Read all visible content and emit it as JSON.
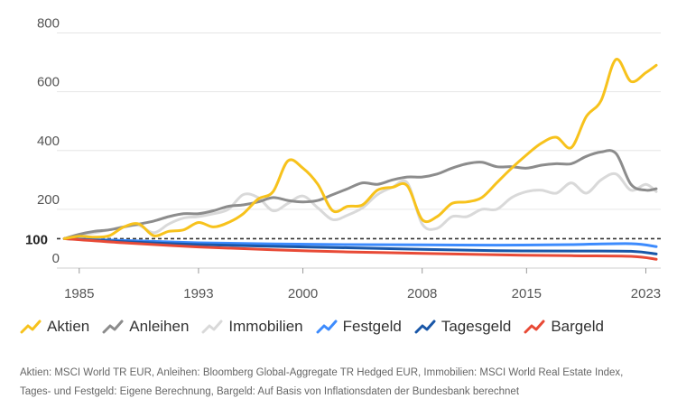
{
  "chart_data": {
    "type": "line",
    "xlabel": "",
    "ylabel": "",
    "xlim": [
      1983.5,
      2024
    ],
    "ylim": [
      0,
      820
    ],
    "y_ticks": [
      0,
      200,
      400,
      600,
      800
    ],
    "y_highlight_tick": 100,
    "x_ticks": [
      1985,
      1993,
      2000,
      2008,
      2015,
      2023
    ],
    "reference_line": {
      "y": 100,
      "style": "dashed",
      "color": "#333333"
    },
    "series": [
      {
        "name": "Aktien",
        "color": "#F7C21C",
        "x": [
          1984,
          1985,
          1986,
          1987,
          1988,
          1989,
          1990,
          1991,
          1992,
          1993,
          1994,
          1995,
          1996,
          1997,
          1998,
          1999,
          2000,
          2001,
          2002,
          2003,
          2004,
          2005,
          2006,
          2007,
          2008,
          2009,
          2010,
          2011,
          2012,
          2013,
          2014,
          2015,
          2016,
          2017,
          2018,
          2019,
          2020,
          2021,
          2022,
          2023,
          2023.7
        ],
        "y": [
          100,
          108,
          105,
          110,
          140,
          150,
          110,
          125,
          130,
          155,
          140,
          155,
          185,
          235,
          260,
          365,
          340,
          285,
          195,
          210,
          215,
          265,
          275,
          280,
          165,
          175,
          220,
          225,
          240,
          290,
          340,
          385,
          425,
          445,
          410,
          515,
          570,
          710,
          635,
          665,
          690
        ]
      },
      {
        "name": "Anleihen",
        "color": "#8C8C8C",
        "x": [
          1984,
          1985,
          1986,
          1987,
          1988,
          1989,
          1990,
          1991,
          1992,
          1993,
          1994,
          1995,
          1996,
          1997,
          1998,
          1999,
          2000,
          2001,
          2002,
          2003,
          2004,
          2005,
          2006,
          2007,
          2008,
          2009,
          2010,
          2011,
          2012,
          2013,
          2014,
          2015,
          2016,
          2017,
          2018,
          2019,
          2020,
          2021,
          2022,
          2023,
          2023.7
        ],
        "y": [
          100,
          115,
          125,
          130,
          140,
          150,
          160,
          175,
          185,
          185,
          195,
          210,
          215,
          225,
          240,
          230,
          225,
          230,
          250,
          270,
          290,
          285,
          300,
          310,
          310,
          320,
          340,
          355,
          360,
          345,
          345,
          340,
          350,
          355,
          355,
          380,
          395,
          390,
          285,
          265,
          270
        ]
      },
      {
        "name": "Immobilien",
        "color": "#D9D9D9",
        "x": [
          1984,
          1985,
          1986,
          1987,
          1988,
          1989,
          1990,
          1991,
          1992,
          1993,
          1994,
          1995,
          1996,
          1997,
          1998,
          1999,
          2000,
          2001,
          2002,
          2003,
          2004,
          2005,
          2006,
          2007,
          2008,
          2009,
          2010,
          2011,
          2012,
          2013,
          2014,
          2015,
          2016,
          2017,
          2018,
          2019,
          2020,
          2021,
          2022,
          2023,
          2023.7
        ],
        "y": [
          100,
          112,
          120,
          130,
          140,
          145,
          120,
          150,
          170,
          175,
          185,
          200,
          250,
          240,
          195,
          220,
          245,
          205,
          165,
          180,
          205,
          250,
          275,
          290,
          150,
          135,
          175,
          175,
          200,
          200,
          240,
          260,
          265,
          255,
          290,
          255,
          300,
          320,
          265,
          285,
          260
        ]
      },
      {
        "name": "Festgeld",
        "color": "#3D8BFD",
        "x": [
          1984,
          1988,
          1993,
          1998,
          2003,
          2008,
          2013,
          2018,
          2022,
          2023.7
        ],
        "y": [
          100,
          94,
          86,
          82,
          80,
          79,
          78,
          80,
          83,
          73
        ]
      },
      {
        "name": "Tagesgeld",
        "color": "#1957A8",
        "x": [
          1984,
          1988,
          1993,
          1998,
          2003,
          2008,
          2013,
          2018,
          2022,
          2023.7
        ],
        "y": [
          100,
          90,
          80,
          74,
          69,
          64,
          59,
          58,
          57,
          48
        ]
      },
      {
        "name": "Bargeld",
        "color": "#E84A36",
        "x": [
          1984,
          1988,
          1993,
          1998,
          2003,
          2008,
          2013,
          2018,
          2022,
          2023.7
        ],
        "y": [
          100,
          86,
          72,
          62,
          55,
          50,
          45,
          42,
          40,
          30
        ]
      }
    ]
  },
  "source_lines": [
    "Aktien: MSCI World TR EUR, Anleihen: Bloomberg Global-Aggregate TR Hedged EUR, Immobilien: MSCI World Real Estate Index,",
    "Tages- und Festgeld: Eigene Berechnung, Bargeld: Auf Basis von Inflationsdaten der Bundesbank berechnet"
  ]
}
